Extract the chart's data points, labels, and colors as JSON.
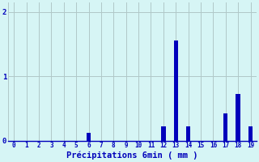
{
  "categories": [
    0,
    1,
    2,
    3,
    4,
    5,
    6,
    7,
    8,
    9,
    10,
    11,
    12,
    13,
    14,
    15,
    16,
    17,
    18,
    19
  ],
  "values": [
    0,
    0,
    0,
    0,
    0,
    0,
    0.12,
    0,
    0,
    0,
    0,
    0,
    0.22,
    1.55,
    0.22,
    0,
    0,
    0.42,
    0.72,
    0.22
  ],
  "bar_color": "#0000bb",
  "background_color": "#d6f5f5",
  "grid_color": "#b0c8c8",
  "xlabel": "Précipitations 6min ( mm )",
  "xlabel_color": "#0000bb",
  "tick_color": "#0000bb",
  "ylim": [
    0,
    2.15
  ],
  "yticks": [
    0,
    1,
    2
  ],
  "xlim": [
    -0.5,
    19.5
  ],
  "bar_width": 0.35,
  "figsize": [
    3.2,
    2.0
  ],
  "dpi": 100
}
